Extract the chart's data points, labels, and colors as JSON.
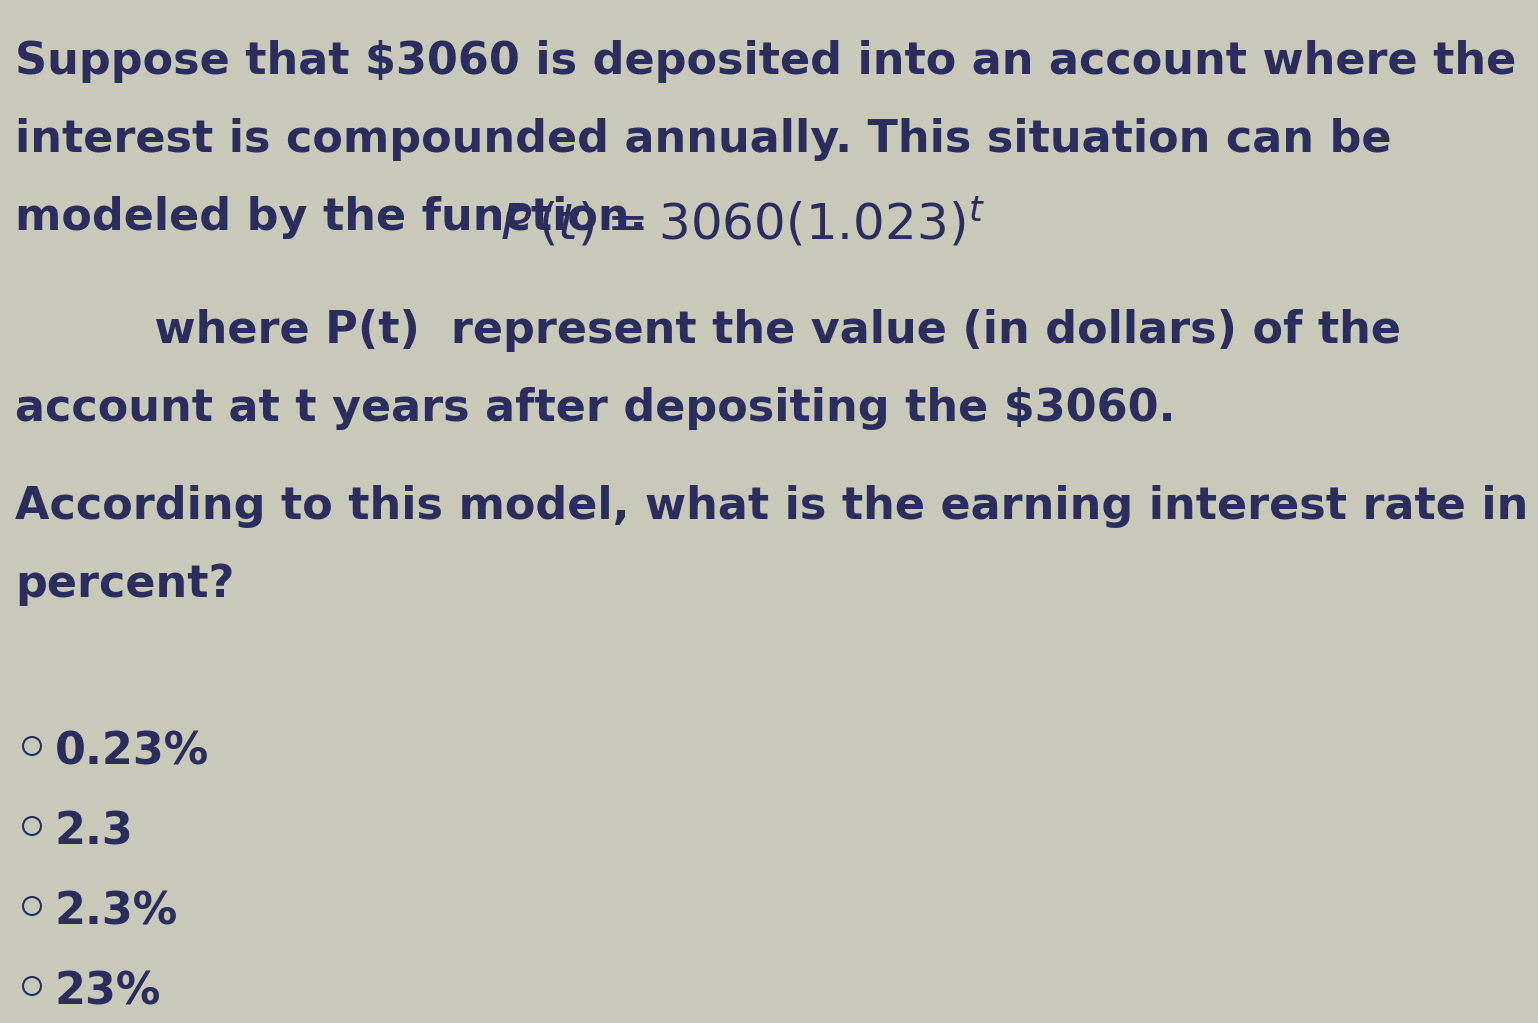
{
  "background_color": "#c8c9b8",
  "text_color": "#2a2d5e",
  "line1": "Suppose that $3060 is deposited into an account where the",
  "line2": "interest is compounded annually. This situation can be",
  "line3_left": "modeled by the function.",
  "line4_indent": "         where P(t)  represent the value (in dollars) of the",
  "line5": "account at t years after depositing the $3060.",
  "line6": "According to this model, what is the earning interest rate in",
  "line7": "percent?",
  "choices": [
    "0.23%",
    "2.3",
    "2.3%",
    "23%"
  ],
  "font_size_main": 32,
  "font_size_choices": 32,
  "font_size_formula": 36
}
